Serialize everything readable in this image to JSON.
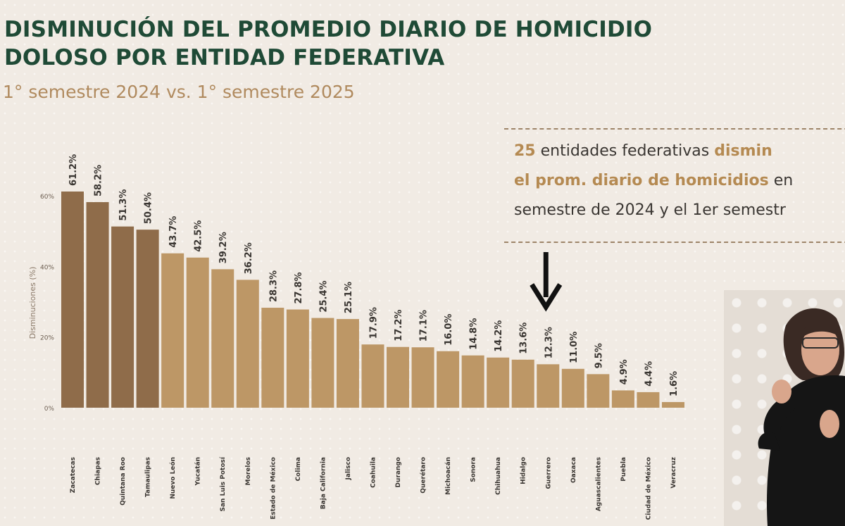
{
  "header": {
    "title_line1": "DISMINUCIÓN DEL PROMEDIO DIARIO DE HOMICIDIO",
    "title_line2": "DOLOSO POR ENTIDAD FEDERATIVA",
    "subtitle": "1° semestre 2024 vs. 1° semestre 2025"
  },
  "note": {
    "line1_count": "25",
    "line1_mid": " entidades federativas ",
    "line1_end": "dismin",
    "line2_bold": "el prom. diario de homicidios",
    "line2_end": " en",
    "line3": "semestre de 2024 y el 1er semestr"
  },
  "colors": {
    "dark_bar": "#8f6c4a",
    "light_bar": "#bd9766",
    "title": "#1f4a36",
    "subtitle": "#b08a5e"
  },
  "chart_data": {
    "type": "bar",
    "title": "",
    "xlabel": "",
    "ylabel": "Disminuciones (%)",
    "ylim": [
      0,
      60
    ],
    "yticks": [
      "0%",
      "20%",
      "40%",
      "60%"
    ],
    "grid": false,
    "categories": [
      "Zacatecas",
      "Chiapas",
      "Quintana Roo",
      "Tamaulipas",
      "Nuevo León",
      "Yucatán",
      "San Luis Potosí",
      "Morelos",
      "Estado de México",
      "Colima",
      "Baja California",
      "Jalisco",
      "Coahuila",
      "Durango",
      "Querétaro",
      "Michoacán",
      "Sonora",
      "Chihuahua",
      "Hidalgo",
      "Guerrero",
      "Oaxaca",
      "Aguascalientes",
      "Puebla",
      "Ciudad de México",
      "Veracruz"
    ],
    "values": [
      61.2,
      58.2,
      51.3,
      50.4,
      43.7,
      42.5,
      39.2,
      36.2,
      28.3,
      27.8,
      25.4,
      25.1,
      17.9,
      17.2,
      17.1,
      16.0,
      14.8,
      14.2,
      13.6,
      12.3,
      11.0,
      9.5,
      4.9,
      4.4,
      1.6
    ],
    "data_labels": [
      "61.2%",
      "58.2%",
      "51.3%",
      "50.4%",
      "43.7%",
      "42.5%",
      "39.2%",
      "36.2%",
      "28.3%",
      "27.8%",
      "25.4%",
      "25.1%",
      "17.9%",
      "17.2%",
      "17.1%",
      "16.0%",
      "14.8%",
      "14.2%",
      "13.6%",
      "12.3%",
      "11.0%",
      "9.5%",
      "4.9%",
      "4.4%",
      "1.6%"
    ],
    "dark_bar_count": 4,
    "annotation": "down-arrow-icon over Guerrero"
  },
  "video": {
    "icon": "sign-language-interpreter"
  }
}
